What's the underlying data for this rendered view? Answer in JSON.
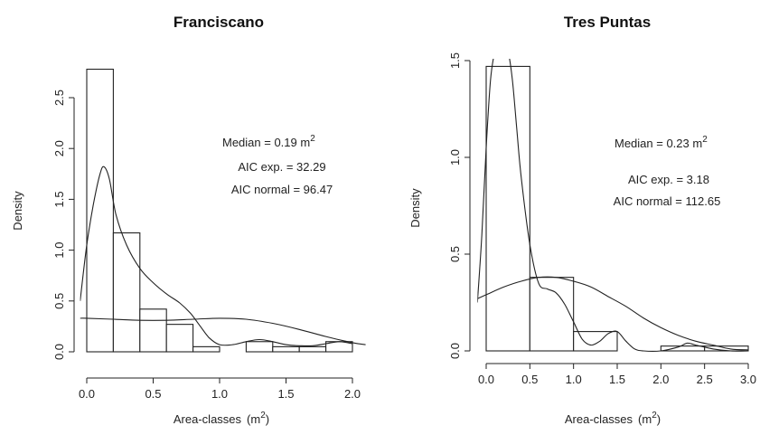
{
  "chart_data": [
    {
      "type": "bar",
      "title": "Franciscano",
      "xlabel": "Area-classes",
      "xlabel_unit": "(m",
      "xlabel_sup": "2",
      "xlabel_close": ")",
      "ylabel": "Density",
      "xlim": [
        -0.05,
        2.1
      ],
      "ylim": [
        0,
        2.8
      ],
      "xticks": [
        0.0,
        0.5,
        1.0,
        1.5,
        2.0
      ],
      "xtick_labels": [
        "0.0",
        "0.5",
        "1.0",
        "1.5",
        "2.0"
      ],
      "yticks": [
        0.0,
        0.5,
        1.0,
        1.5,
        2.0,
        2.5
      ],
      "ytick_labels": [
        "0.0",
        "0.5",
        "1.0",
        "1.5",
        "2.0",
        "2.5"
      ],
      "bins": [
        {
          "x0": 0.0,
          "x1": 0.2,
          "density": 2.78
        },
        {
          "x0": 0.2,
          "x1": 0.4,
          "density": 1.17
        },
        {
          "x0": 0.4,
          "x1": 0.6,
          "density": 0.42
        },
        {
          "x0": 0.6,
          "x1": 0.8,
          "density": 0.27
        },
        {
          "x0": 0.8,
          "x1": 1.0,
          "density": 0.05
        },
        {
          "x0": 1.0,
          "x1": 1.2,
          "density": 0.0
        },
        {
          "x0": 1.2,
          "x1": 1.4,
          "density": 0.1
        },
        {
          "x0": 1.4,
          "x1": 1.6,
          "density": 0.05
        },
        {
          "x0": 1.6,
          "x1": 1.8,
          "density": 0.05
        },
        {
          "x0": 1.8,
          "x1": 2.0,
          "density": 0.1
        }
      ],
      "curves": [
        {
          "x": [
            -0.05,
            0.0,
            0.05,
            0.1,
            0.13,
            0.17,
            0.22,
            0.3,
            0.4,
            0.5,
            0.6,
            0.7,
            0.78,
            0.85,
            0.92,
            1.0,
            1.1,
            1.2,
            1.3,
            1.4,
            1.5,
            1.6,
            1.7,
            1.8,
            1.9,
            2.0
          ],
          "y": [
            0.5,
            1.05,
            1.45,
            1.75,
            1.82,
            1.7,
            1.35,
            1.05,
            0.82,
            0.68,
            0.57,
            0.48,
            0.38,
            0.26,
            0.14,
            0.07,
            0.07,
            0.1,
            0.12,
            0.1,
            0.07,
            0.06,
            0.06,
            0.08,
            0.1,
            0.08
          ]
        },
        {
          "x": [
            -0.05,
            0.0,
            0.2,
            0.4,
            0.6,
            0.8,
            1.0,
            1.2,
            1.4,
            1.6,
            1.8,
            2.0,
            2.1
          ],
          "y": [
            0.33,
            0.33,
            0.32,
            0.31,
            0.31,
            0.32,
            0.33,
            0.32,
            0.28,
            0.22,
            0.15,
            0.09,
            0.07
          ]
        }
      ],
      "annotations": {
        "median_prefix": "Median = 0.19  m",
        "median_sup": "2",
        "aic_exp": "AIC exp. = 32.29",
        "aic_normal": "AIC normal = 96.47"
      }
    },
    {
      "type": "bar",
      "title": "Tres Puntas",
      "xlabel": "Area-classes",
      "xlabel_unit": "(m",
      "xlabel_sup": "2",
      "xlabel_close": ")",
      "ylabel": "Density",
      "xlim": [
        -0.1,
        3.1
      ],
      "ylim": [
        0,
        1.5
      ],
      "xticks": [
        0.0,
        0.5,
        1.0,
        1.5,
        2.0,
        2.5,
        3.0
      ],
      "xtick_labels": [
        "0.0",
        "0.5",
        "1.0",
        "1.5",
        "2.0",
        "2.5",
        "3.0"
      ],
      "yticks": [
        0.0,
        0.5,
        1.0,
        1.5
      ],
      "ytick_labels": [
        "0.0",
        "0.5",
        "1.0",
        "1.5"
      ],
      "bins": [
        {
          "x0": 0.0,
          "x1": 0.5,
          "density": 1.47
        },
        {
          "x0": 0.5,
          "x1": 1.0,
          "density": 0.38
        },
        {
          "x0": 1.0,
          "x1": 1.5,
          "density": 0.1
        },
        {
          "x0": 1.5,
          "x1": 2.0,
          "density": 0.0
        },
        {
          "x0": 2.0,
          "x1": 2.5,
          "density": 0.025
        },
        {
          "x0": 2.5,
          "x1": 3.0,
          "density": 0.025
        }
      ],
      "curves": [
        {
          "x": [
            -0.1,
            -0.05,
            0.0,
            0.05,
            0.1,
            0.15,
            0.2,
            0.25,
            0.3,
            0.35,
            0.4,
            0.5,
            0.6,
            0.7,
            0.8,
            0.9,
            1.0,
            1.1,
            1.2,
            1.3,
            1.4,
            1.5,
            1.6,
            1.7,
            1.8,
            2.0,
            2.2,
            2.3,
            2.4,
            2.6,
            2.8,
            3.0
          ],
          "y": [
            0.25,
            0.6,
            1.05,
            1.4,
            1.55,
            1.6,
            1.6,
            1.55,
            1.4,
            1.15,
            0.9,
            0.55,
            0.35,
            0.32,
            0.3,
            0.24,
            0.15,
            0.06,
            0.03,
            0.05,
            0.09,
            0.1,
            0.05,
            0.01,
            0.0,
            0.0,
            0.02,
            0.04,
            0.03,
            0.01,
            0.0,
            0.0
          ]
        },
        {
          "x": [
            -0.1,
            0.0,
            0.2,
            0.4,
            0.6,
            0.8,
            1.0,
            1.2,
            1.4,
            1.6,
            1.8,
            2.0,
            2.2,
            2.4,
            2.6,
            2.8,
            3.0
          ],
          "y": [
            0.27,
            0.29,
            0.33,
            0.36,
            0.38,
            0.38,
            0.36,
            0.33,
            0.28,
            0.23,
            0.17,
            0.12,
            0.08,
            0.05,
            0.03,
            0.01,
            0.005
          ]
        }
      ],
      "annotations": {
        "median_prefix": "Median = 0.23  m",
        "median_sup": "2",
        "aic_exp": "AIC exp. = 3.18",
        "aic_normal": "AIC normal = 112.65"
      }
    }
  ]
}
